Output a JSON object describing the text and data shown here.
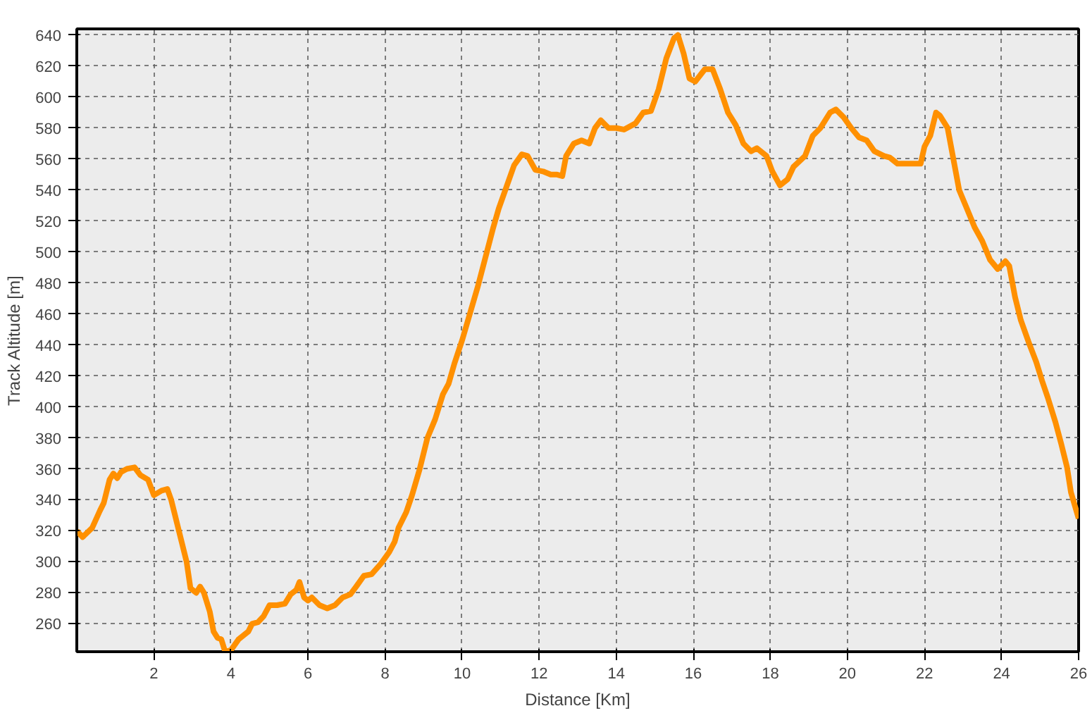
{
  "chart_data": {
    "type": "line",
    "xlabel": "Distance [Km]",
    "ylabel": "Track Altitude [m]",
    "x": [
      0,
      0.15,
      0.4,
      0.6,
      0.7,
      0.85,
      0.95,
      1.05,
      1.15,
      1.3,
      1.5,
      1.65,
      1.85,
      2.0,
      2.2,
      2.35,
      2.45,
      2.55,
      2.7,
      2.85,
      2.95,
      3.1,
      3.2,
      3.3,
      3.45,
      3.55,
      3.65,
      3.75,
      3.85,
      4.0,
      4.2,
      4.45,
      4.55,
      4.7,
      4.85,
      5.0,
      5.2,
      5.4,
      5.55,
      5.7,
      5.78,
      5.9,
      6.0,
      6.1,
      6.3,
      6.5,
      6.7,
      6.9,
      7.1,
      7.25,
      7.45,
      7.65,
      7.9,
      8.1,
      8.25,
      8.35,
      8.55,
      8.7,
      8.9,
      9.1,
      9.3,
      9.5,
      9.65,
      9.8,
      10.0,
      10.2,
      10.4,
      10.6,
      10.8,
      10.95,
      11.15,
      11.35,
      11.55,
      11.7,
      11.9,
      12.1,
      12.3,
      12.45,
      12.6,
      12.7,
      12.9,
      13.1,
      13.3,
      13.45,
      13.6,
      13.8,
      14.0,
      14.2,
      14.5,
      14.7,
      14.9,
      15.1,
      15.3,
      15.5,
      15.6,
      15.75,
      15.9,
      16.05,
      16.3,
      16.5,
      16.7,
      16.9,
      17.1,
      17.3,
      17.5,
      17.65,
      17.9,
      18.05,
      18.25,
      18.45,
      18.6,
      18.9,
      19.1,
      19.3,
      19.55,
      19.7,
      19.9,
      20.1,
      20.3,
      20.5,
      20.7,
      20.95,
      21.1,
      21.3,
      21.6,
      21.9,
      22.0,
      22.15,
      22.3,
      22.4,
      22.6,
      22.75,
      22.9,
      23.1,
      23.3,
      23.5,
      23.7,
      23.9,
      24.1,
      24.2,
      24.35,
      24.5,
      24.7,
      24.9,
      25.05,
      25.2,
      25.4,
      25.55,
      25.7,
      25.8,
      26.0
    ],
    "series": [
      {
        "color": "#ff9000",
        "values": [
          320,
          316,
          322,
          333,
          338,
          353,
          357,
          354,
          358,
          360,
          361,
          356,
          353,
          343,
          346,
          347,
          340,
          330,
          315,
          300,
          283,
          280,
          284,
          280,
          268,
          255,
          251,
          250,
          242,
          243,
          250,
          255,
          260,
          261,
          265,
          272,
          272,
          273,
          279,
          282,
          287,
          277,
          275,
          277,
          272,
          270,
          272,
          277,
          279,
          284,
          291,
          292,
          299,
          306,
          313,
          322,
          332,
          343,
          360,
          380,
          392,
          408,
          415,
          428,
          443,
          460,
          477,
          496,
          515,
          528,
          542,
          556,
          563,
          562,
          553,
          552,
          550,
          550,
          549,
          562,
          570,
          572,
          570,
          580,
          585,
          580,
          580,
          579,
          583,
          590,
          591,
          605,
          625,
          638,
          640,
          628,
          612,
          610,
          618,
          618,
          605,
          590,
          582,
          570,
          565,
          567,
          562,
          552,
          543,
          547,
          555,
          562,
          575,
          580,
          590,
          592,
          587,
          580,
          574,
          572,
          565,
          562,
          561,
          557,
          557,
          557,
          568,
          575,
          590,
          588,
          580,
          560,
          540,
          528,
          516,
          507,
          495,
          489,
          494,
          491,
          471,
          456,
          442,
          429,
          417,
          406,
          390,
          376,
          361,
          345,
          328
        ]
      }
    ],
    "xlim": [
      0,
      26
    ],
    "ylim": [
      242,
      644
    ],
    "xticks": [
      2,
      4,
      6,
      8,
      10,
      12,
      14,
      16,
      18,
      20,
      22,
      24,
      26
    ],
    "yticks": [
      260,
      280,
      300,
      320,
      340,
      360,
      380,
      400,
      420,
      440,
      460,
      480,
      500,
      520,
      540,
      560,
      580,
      600,
      620,
      640
    ],
    "grid": true,
    "line_style": "solid",
    "marker": "none"
  }
}
